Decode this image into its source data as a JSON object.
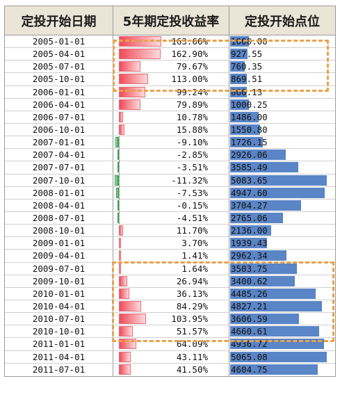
{
  "headers": [
    "定投开始日期",
    "5年期定投收益率",
    "定投开始点位"
  ],
  "colors": {
    "pos_bar": "#f04b59",
    "neg_bar": "#2d9e43",
    "point_bar": "#5a85c6",
    "highlight": "#e8a24a",
    "header_bg": "#ebe5d7"
  },
  "scale": {
    "rate_min": -15,
    "rate_max": 175,
    "point_max": 5400
  },
  "rows": [
    {
      "date": "2005-01-01",
      "rate": "163.66%",
      "rate_value": 163.66,
      "point": "1000.00",
      "point_value": 1000.0
    },
    {
      "date": "2005-04-01",
      "rate": "162.90%",
      "rate_value": 162.9,
      "point": "927.55",
      "point_value": 927.55
    },
    {
      "date": "2005-07-01",
      "rate": "79.67%",
      "rate_value": 79.67,
      "point": "760.35",
      "point_value": 760.35
    },
    {
      "date": "2005-10-01",
      "rate": "113.00%",
      "rate_value": 113.0,
      "point": "869.51",
      "point_value": 869.51
    },
    {
      "date": "2006-01-01",
      "rate": "99.24%",
      "rate_value": 99.24,
      "point": "860.13",
      "point_value": 860.13
    },
    {
      "date": "2006-04-01",
      "rate": "79.89%",
      "rate_value": 79.89,
      "point": "1000.25",
      "point_value": 1000.25
    },
    {
      "date": "2006-07-01",
      "rate": "10.78%",
      "rate_value": 10.78,
      "point": "1486.00",
      "point_value": 1486.0
    },
    {
      "date": "2006-10-01",
      "rate": "15.88%",
      "rate_value": 15.88,
      "point": "1550.80",
      "point_value": 1550.8
    },
    {
      "date": "2007-01-01",
      "rate": "-9.10%",
      "rate_value": -9.1,
      "point": "1726.15",
      "point_value": 1726.15
    },
    {
      "date": "2007-04-01",
      "rate": "-2.85%",
      "rate_value": -2.85,
      "point": "2926.06",
      "point_value": 2926.06
    },
    {
      "date": "2007-07-01",
      "rate": "-3.51%",
      "rate_value": -3.51,
      "point": "3585.49",
      "point_value": 3585.49
    },
    {
      "date": "2007-10-01",
      "rate": "-11.32%",
      "rate_value": -11.32,
      "point": "5083.65",
      "point_value": 5083.65
    },
    {
      "date": "2008-01-01",
      "rate": "-7.53%",
      "rate_value": -7.53,
      "point": "4947.60",
      "point_value": 4947.6
    },
    {
      "date": "2008-04-01",
      "rate": "-0.15%",
      "rate_value": -0.15,
      "point": "3704.27",
      "point_value": 3704.27
    },
    {
      "date": "2008-07-01",
      "rate": "-4.51%",
      "rate_value": -4.51,
      "point": "2765.06",
      "point_value": 2765.06
    },
    {
      "date": "2008-10-01",
      "rate": "11.70%",
      "rate_value": 11.7,
      "point": "2136.00",
      "point_value": 2136.0
    },
    {
      "date": "2009-01-01",
      "rate": "3.70%",
      "rate_value": 3.7,
      "point": "1939.43",
      "point_value": 1939.43
    },
    {
      "date": "2009-04-01",
      "rate": "1.41%",
      "rate_value": 1.41,
      "point": "2962.34",
      "point_value": 2962.34
    },
    {
      "date": "2009-07-01",
      "rate": "1.64%",
      "rate_value": 1.64,
      "point": "3503.75",
      "point_value": 3503.75
    },
    {
      "date": "2009-10-01",
      "rate": "26.94%",
      "rate_value": 26.94,
      "point": "3400.62",
      "point_value": 3400.62
    },
    {
      "date": "2010-01-01",
      "rate": "36.13%",
      "rate_value": 36.13,
      "point": "4485.26",
      "point_value": 4485.26
    },
    {
      "date": "2010-04-01",
      "rate": "84.29%",
      "rate_value": 84.29,
      "point": "4827.21",
      "point_value": 4827.21
    },
    {
      "date": "2010-07-01",
      "rate": "103.95%",
      "rate_value": 103.95,
      "point": "3606.59",
      "point_value": 3606.59
    },
    {
      "date": "2010-10-01",
      "rate": "51.57%",
      "rate_value": 51.57,
      "point": "4660.61",
      "point_value": 4660.61
    },
    {
      "date": "2011-01-01",
      "rate": "64.09%",
      "rate_value": 64.09,
      "point": "4936.72",
      "point_value": 4936.72
    },
    {
      "date": "2011-04-01",
      "rate": "43.11%",
      "rate_value": 43.11,
      "point": "5065.08",
      "point_value": 5065.08
    },
    {
      "date": "2011-07-01",
      "rate": "41.50%",
      "rate_value": 41.5,
      "point": "4604.75",
      "point_value": 4604.75
    }
  ]
}
